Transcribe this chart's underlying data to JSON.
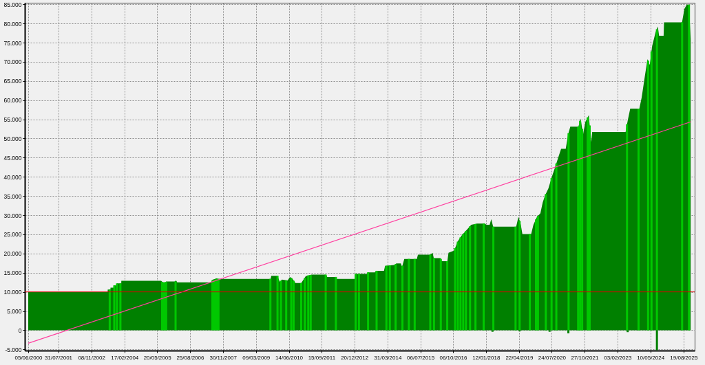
{
  "chart_data": {
    "type": "area",
    "xlim": [
      "2000-06-05",
      "2025-12-05"
    ],
    "ylim": [
      -5300,
      85400
    ],
    "xticks": [
      {
        "value": "2000-06-05",
        "label": "05/06/2000"
      },
      {
        "value": "2001-07-31",
        "label": "31/07/2001"
      },
      {
        "value": "2002-11-08",
        "label": "08/11/2002"
      },
      {
        "value": "2004-02-17",
        "label": "17/02/2004"
      },
      {
        "value": "2005-05-20",
        "label": "20/05/2005"
      },
      {
        "value": "2006-08-25",
        "label": "25/08/2006"
      },
      {
        "value": "2007-11-30",
        "label": "30/11/2007"
      },
      {
        "value": "2009-03-09",
        "label": "09/03/2009"
      },
      {
        "value": "2010-06-14",
        "label": "14/06/2010"
      },
      {
        "value": "2011-09-15",
        "label": "15/09/2011"
      },
      {
        "value": "2012-12-20",
        "label": "20/12/2012"
      },
      {
        "value": "2014-03-31",
        "label": "31/03/2014"
      },
      {
        "value": "2015-07-06",
        "label": "06/07/2015"
      },
      {
        "value": "2016-10-06",
        "label": "06/10/2016"
      },
      {
        "value": "2018-01-12",
        "label": "12/01/2018"
      },
      {
        "value": "2019-04-22",
        "label": "22/04/2019"
      },
      {
        "value": "2020-07-24",
        "label": "24/07/2020"
      },
      {
        "value": "2021-10-27",
        "label": "27/10/2021"
      },
      {
        "value": "2023-02-03",
        "label": "03/02/2023"
      },
      {
        "value": "2024-05-10",
        "label": "10/05/2024"
      },
      {
        "value": "2025-08-19",
        "label": "19/08/2025"
      }
    ],
    "yticks": [
      {
        "value": -5000,
        "label": "-5.000"
      },
      0,
      {
        "value": 5000,
        "label": "5.000"
      },
      {
        "value": 10000,
        "label": "10.000"
      },
      {
        "value": 15000,
        "label": "15.000"
      },
      {
        "value": 20000,
        "label": "20.000"
      },
      {
        "value": 25000,
        "label": "25.000"
      },
      {
        "value": 30000,
        "label": "30.000"
      },
      {
        "value": 35000,
        "label": "35.000"
      },
      {
        "value": 40000,
        "label": "40.000"
      },
      {
        "value": 45000,
        "label": "45.000"
      },
      {
        "value": 50000,
        "label": "50.000"
      },
      {
        "value": 55000,
        "label": "55.000"
      },
      {
        "value": 60000,
        "label": "60.000"
      },
      {
        "value": 65000,
        "label": "65.000"
      },
      {
        "value": 70000,
        "label": "70.000"
      },
      {
        "value": 75000,
        "label": "75.000"
      },
      {
        "value": 80000,
        "label": "80.000"
      },
      {
        "value": 85000,
        "label": "85.000"
      }
    ],
    "grid": true,
    "series": [
      {
        "color": "#008000",
        "x": [
          "2000-06-05",
          "2003-06-26",
          "2003-06-27",
          "2003-08-04",
          "2003-08-05",
          "2003-09-21",
          "2003-09-22",
          "2003-10-30",
          "2003-10-31",
          "2004-01-03",
          "2004-01-04",
          "2005-07-16",
          "2005-08-09",
          "2005-09-19",
          "2005-09-22",
          "2006-01-25",
          "2006-02-11",
          "2006-02-27",
          "2007-06-28",
          "2007-07-01",
          "2007-09-01",
          "2007-10-03",
          "2009-10-02",
          "2009-10-10",
          "2010-01-06",
          "2010-02-06",
          "2010-03-09",
          "2010-05-28",
          "2010-06-29",
          "2010-07-30",
          "2010-09-16",
          "2010-12-05",
          "2011-02-07",
          "2011-04-28",
          "2011-11-19",
          "2011-12-05",
          "2012-04-11",
          "2012-04-12",
          "2012-12-23",
          "2013-01-08",
          "2013-06-16",
          "2013-07-01",
          "2013-10-05",
          "2013-10-21",
          "2014-02-10",
          "2014-02-25",
          "2014-07-02",
          "2014-08-03",
          "2014-10-05",
          "2014-10-21",
          "2014-11-22",
          "2015-05-17",
          "2015-06-02",
          "2015-11-23",
          "2015-12-25",
          "2016-01-10",
          "2016-04-15",
          "2016-05-01",
          "2016-07-19",
          "2016-08-04",
          "2016-10-23",
          "2016-12-10",
          "2017-02-12",
          "2017-03-15",
          "2017-06-20",
          "2017-09-09",
          "2017-12-31",
          "2018-01-16",
          "2018-03-05",
          "2018-03-28",
          "2018-04-23",
          "2019-03-13",
          "2019-04-14",
          "2019-05-17",
          "2019-06-08",
          "2019-10-09",
          "2019-11-10",
          "2019-12-29",
          "2020-02-16",
          "2020-03-19",
          "2020-04-21",
          "2020-06-08",
          "2020-07-26",
          "2020-09-13",
          "2020-11-01",
          "2020-12-03",
          "2021-02-06",
          "2021-03-11",
          "2021-04-11",
          "2021-08-03",
          "2021-09-04",
          "2021-10-07",
          "2021-11-08",
          "2021-12-27",
          "2022-01-28",
          "2022-02-13",
          "2023-05-28",
          "2023-06-29",
          "2023-08-01",
          "2023-12-07",
          "2024-01-09",
          "2024-02-27",
          "2024-03-31",
          "2024-05-02",
          "2024-06-04",
          "2024-07-22",
          "2024-08-23",
          "2024-09-09",
          "2024-11-12",
          "2024-11-18",
          "2025-07-29",
          "2025-08-31",
          "2025-10-03",
          "2025-11-04",
          "2025-11-27"
        ],
        "values": [
          10000,
          10000,
          10600,
          10600,
          11100,
          11100,
          11700,
          11700,
          12200,
          12200,
          12900,
          12900,
          12500,
          12500,
          12700,
          12700,
          13000,
          12500,
          12500,
          13100,
          13500,
          13400,
          13400,
          14200,
          14200,
          12600,
          13200,
          13000,
          13900,
          13500,
          12300,
          12300,
          14100,
          14500,
          14500,
          13900,
          13900,
          13400,
          13400,
          14700,
          14700,
          15100,
          15100,
          15500,
          15500,
          16800,
          17000,
          17400,
          17400,
          16500,
          18600,
          18600,
          19700,
          19700,
          20200,
          18800,
          18800,
          18000,
          18000,
          20200,
          20800,
          23100,
          24900,
          25500,
          27500,
          27800,
          27800,
          27500,
          27500,
          29000,
          27000,
          27000,
          29600,
          27500,
          25100,
          25100,
          27500,
          29500,
          30500,
          33300,
          35100,
          37000,
          40000,
          42700,
          45500,
          47300,
          47300,
          51000,
          53100,
          53100,
          55200,
          51000,
          54300,
          56100,
          49100,
          51700,
          51700,
          54900,
          57800,
          57800,
          60700,
          66800,
          70700,
          69200,
          74100,
          77700,
          79200,
          76800,
          76800,
          80300,
          80300,
          83800,
          84900,
          84900,
          76000
        ]
      },
      {
        "type": "bar",
        "color": "#00c800",
        "x": [
          "2003-07-25",
          "2003-09-27",
          "2003-11-04",
          "2003-12-22",
          "2005-07-30",
          "2005-08-28",
          "2005-09-25",
          "2006-02-04",
          "2007-07-06",
          "2007-08-04",
          "2007-09-02",
          "2007-09-30",
          "2009-09-28",
          "2010-01-06",
          "2010-02-23",
          "2010-05-08",
          "2010-07-18",
          "2010-08-20",
          "2010-12-05",
          "2011-01-25",
          "2011-03-14",
          "2011-04-17",
          "2011-11-14",
          "2012-04-05",
          "2013-01-08",
          "2013-02-23",
          "2013-07-01",
          "2013-10-29",
          "2014-03-16",
          "2014-05-03",
          "2014-07-23",
          "2014-10-27",
          "2015-01-25",
          "2015-04-17",
          "2015-11-22",
          "2016-01-13",
          "2016-04-18",
          "2016-07-17",
          "2016-11-05",
          "2016-12-13",
          "2017-01-20",
          "2017-02-27",
          "2017-04-06",
          "2017-06-03",
          "2017-08-18",
          "2017-12-11",
          "2018-04-26",
          "2019-03-04",
          "2019-04-30",
          "2019-09-21",
          "2019-12-16",
          "2020-01-13",
          "2020-05-02",
          "2020-07-22",
          "2020-09-27",
          "2021-03-18",
          "2021-07-30",
          "2021-08-27",
          "2021-09-25",
          "2021-12-11",
          "2022-01-08",
          "2023-06-17",
          "2023-11-26",
          "2024-04-08",
          "2024-05-26",
          "2024-08-10",
          "2025-07-30",
          "2025-11-03"
        ],
        "values": [
          10600,
          11700,
          12200,
          12200,
          12600,
          12500,
          12600,
          12700,
          13000,
          13200,
          13400,
          13400,
          13400,
          14200,
          12900,
          13000,
          13600,
          12900,
          12300,
          13600,
          14300,
          14400,
          14500,
          13900,
          14700,
          14700,
          15100,
          15500,
          16800,
          16900,
          17200,
          16800,
          18600,
          18600,
          19700,
          18800,
          18600,
          18000,
          21400,
          23100,
          24200,
          25100,
          25900,
          27100,
          27700,
          27800,
          27000,
          27000,
          28500,
          25100,
          28900,
          29800,
          35500,
          39700,
          43500,
          51400,
          53100,
          54600,
          52500,
          55500,
          53400,
          53700,
          57800,
          70300,
          72700,
          78500,
          80300,
          84900
        ]
      },
      {
        "type": "bar",
        "color": "#008000",
        "x": [
          "2018-04-14",
          "2019-05-01",
          "2020-06-24",
          "2021-03-15",
          "2023-06-26",
          "2024-08-10"
        ],
        "values": [
          -400,
          -300,
          -400,
          -800,
          -500,
          -5200
        ]
      },
      {
        "type": "line",
        "color": "#ff40a0",
        "x": [
          "2000-06-05",
          "2025-12-05"
        ],
        "values": [
          -3400,
          54400
        ]
      }
    ],
    "ref_lines": [
      {
        "axis": "y",
        "value": 10000,
        "color": "#dd0000"
      }
    ]
  }
}
